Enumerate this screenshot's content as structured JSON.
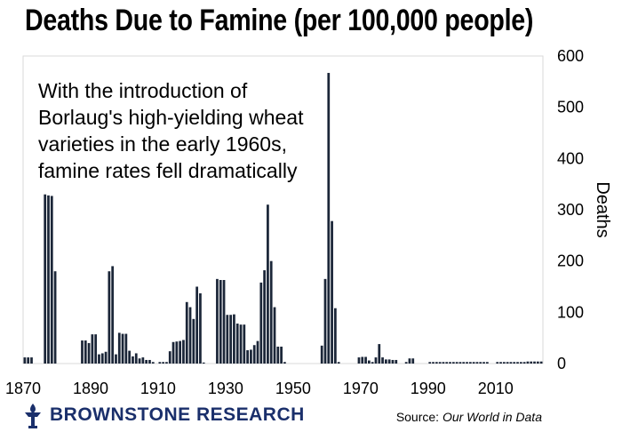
{
  "chart_data": {
    "type": "bar",
    "title": "Deaths Due to Famine (per 100,000 people)",
    "ylabel": "Deaths",
    "xlabel": "",
    "ylim": [
      0,
      600
    ],
    "xlim": [
      1870,
      2024
    ],
    "yticks": [
      "0",
      "100",
      "200",
      "300",
      "400",
      "500",
      "600"
    ],
    "xticks": [
      "1870",
      "1890",
      "1910",
      "1930",
      "1950",
      "1970",
      "1990",
      "2010"
    ],
    "x": [
      1870,
      1871,
      1872,
      1876,
      1877,
      1878,
      1879,
      1887,
      1888,
      1889,
      1890,
      1891,
      1892,
      1893,
      1894,
      1895,
      1896,
      1897,
      1898,
      1899,
      1900,
      1901,
      1902,
      1903,
      1904,
      1905,
      1906,
      1907,
      1908,
      1910,
      1911,
      1912,
      1913,
      1914,
      1915,
      1916,
      1917,
      1918,
      1919,
      1920,
      1921,
      1922,
      1923,
      1927,
      1928,
      1929,
      1930,
      1931,
      1932,
      1933,
      1934,
      1935,
      1936,
      1937,
      1938,
      1939,
      1940,
      1941,
      1942,
      1943,
      1944,
      1945,
      1946,
      1947,
      1958,
      1959,
      1960,
      1961,
      1962,
      1963,
      1969,
      1970,
      1971,
      1972,
      1973,
      1974,
      1975,
      1976,
      1977,
      1978,
      1979,
      1980,
      1983,
      1984,
      1985,
      1990,
      1991,
      1992,
      1993,
      1994,
      1995,
      1996,
      1997,
      1998,
      1999,
      2000,
      2001,
      2002,
      2003,
      2004,
      2005,
      2006,
      2007,
      2010,
      2011,
      2012,
      2013,
      2014,
      2015,
      2016,
      2017,
      2018,
      2019,
      2020,
      2021,
      2022,
      2023
    ],
    "values": [
      12,
      12,
      12,
      330,
      328,
      327,
      180,
      45,
      45,
      40,
      57,
      57,
      18,
      20,
      23,
      180,
      190,
      18,
      60,
      58,
      58,
      25,
      14,
      20,
      10,
      12,
      7,
      7,
      3,
      3,
      3,
      3,
      24,
      42,
      43,
      44,
      46,
      120,
      110,
      87,
      150,
      137,
      2,
      165,
      163,
      163,
      95,
      95,
      96,
      78,
      76,
      76,
      26,
      27,
      36,
      44,
      158,
      182,
      310,
      200,
      110,
      33,
      33,
      3,
      35,
      165,
      567,
      278,
      108,
      3,
      12,
      13,
      13,
      6,
      3,
      12,
      38,
      12,
      8,
      8,
      7,
      7,
      3,
      10,
      10,
      3,
      3,
      3,
      3,
      3,
      3,
      3,
      3,
      3,
      3,
      3,
      3,
      3,
      3,
      3,
      3,
      3,
      3,
      3,
      3,
      3,
      3,
      3,
      3,
      3,
      3,
      3,
      4,
      4,
      4,
      4,
      4
    ],
    "annotation": [
      "With the introduction of",
      "Borlaug's high-yielding wheat",
      "varieties in the early 1960s,",
      "famine rates fell dramatically"
    ],
    "grid": false,
    "legend": "none",
    "colors": {
      "bar": "#1b2638",
      "frame": "#d9d9d9"
    }
  },
  "footer": {
    "brand": "BROWNSTONE RESEARCH",
    "source_prefix": "Source: ",
    "source_name": "Our World in Data"
  },
  "logo_icon": "torch-icon"
}
